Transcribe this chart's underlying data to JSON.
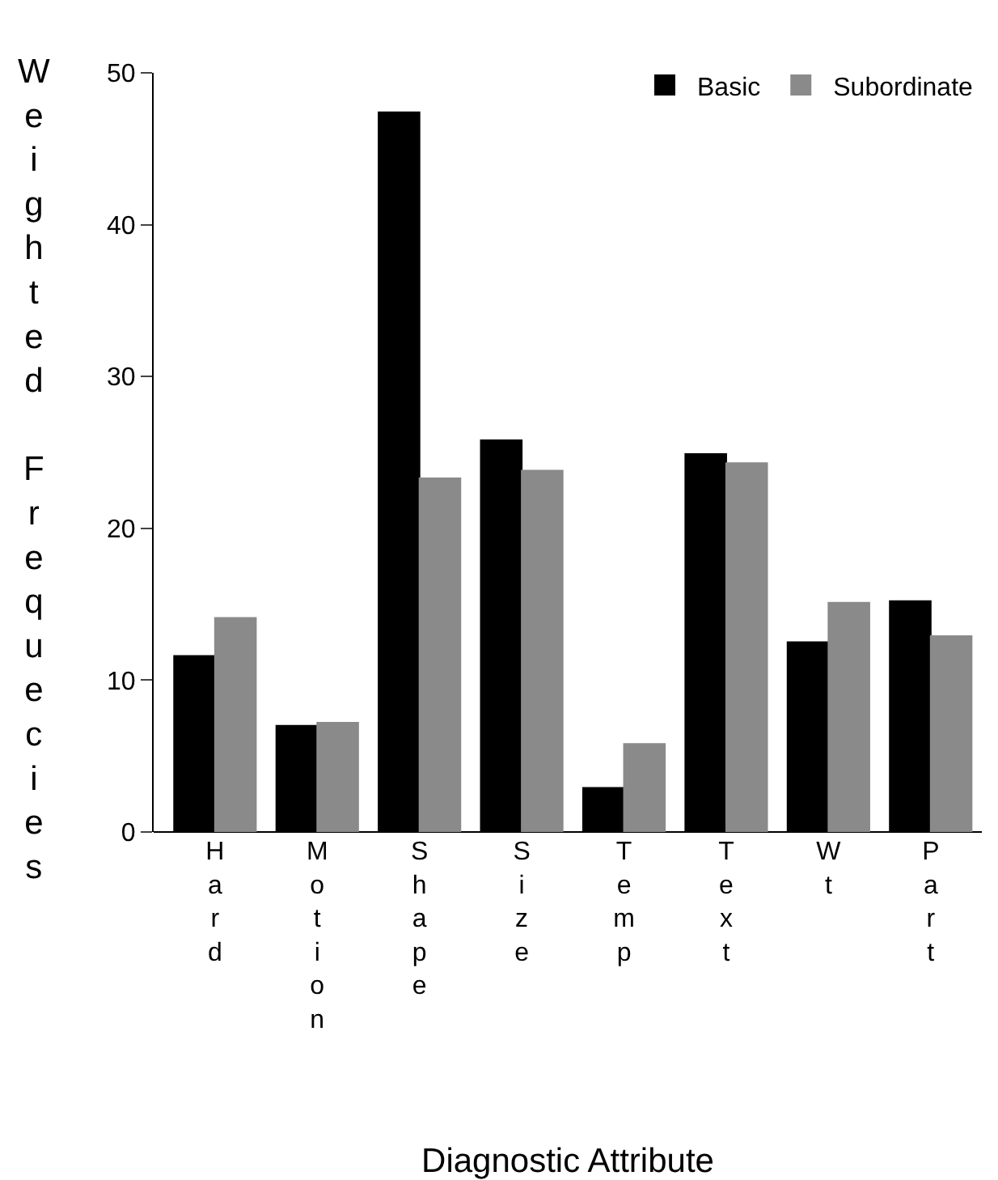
{
  "chart_data": {
    "type": "bar",
    "xlabel": "Diagnostic Attribute",
    "ylabel": "Weighted Frequecies",
    "categories": [
      "Hard",
      "Motion",
      "Shape",
      "Size",
      "Temp",
      "Text",
      "Wt",
      "Part"
    ],
    "series": [
      {
        "name": "Basic",
        "color": "#000000",
        "values": [
          11.6,
          7.0,
          47.4,
          25.8,
          2.9,
          24.9,
          12.5,
          15.2
        ]
      },
      {
        "name": "Subordinate",
        "color": "#8a8a8a",
        "values": [
          14.1,
          7.2,
          23.3,
          23.8,
          5.8,
          24.3,
          15.1,
          12.9
        ]
      }
    ],
    "ylim": [
      0,
      50
    ],
    "yticks": [
      0,
      10,
      20,
      30,
      40,
      50
    ],
    "grid": false,
    "legend": "top right"
  }
}
